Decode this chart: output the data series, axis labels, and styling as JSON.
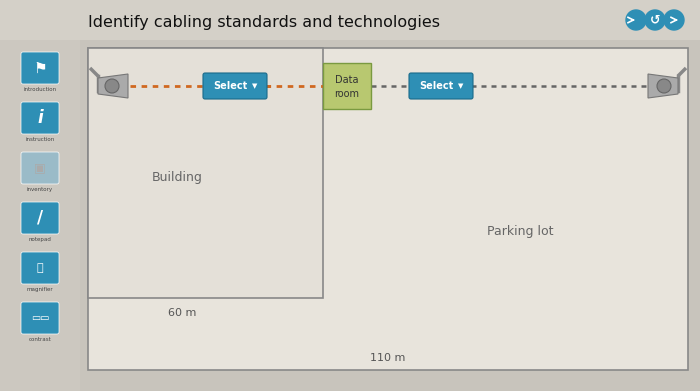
{
  "title": "Identify cabling standards and technologies",
  "bg_outer": "#c8c4bc",
  "bg_inner": "#dedad2",
  "sidebar_color": "#2e8fb5",
  "sidebar_color_dim": "#9abbc8",
  "outer_rect_color": "#e8e4dc",
  "outer_rect_edge": "#888888",
  "inner_rect_color": "#e4e0d8",
  "inner_rect_edge": "#888888",
  "building_label": "Building",
  "parking_label": "Parking lot",
  "dist1_label": "60 m",
  "dist2_label": "110 m",
  "select_btn_color": "#2e8fb5",
  "data_room_color": "#b8c870",
  "data_room_edge": "#7a9a40",
  "dotted_color_left": "#d06820",
  "dotted_color_right": "#666666",
  "sidebar_icons": [
    "introduction",
    "instruction",
    "inventory",
    "notepad",
    "magnifier",
    "contrast"
  ],
  "nav_color": "#2e8fb5"
}
